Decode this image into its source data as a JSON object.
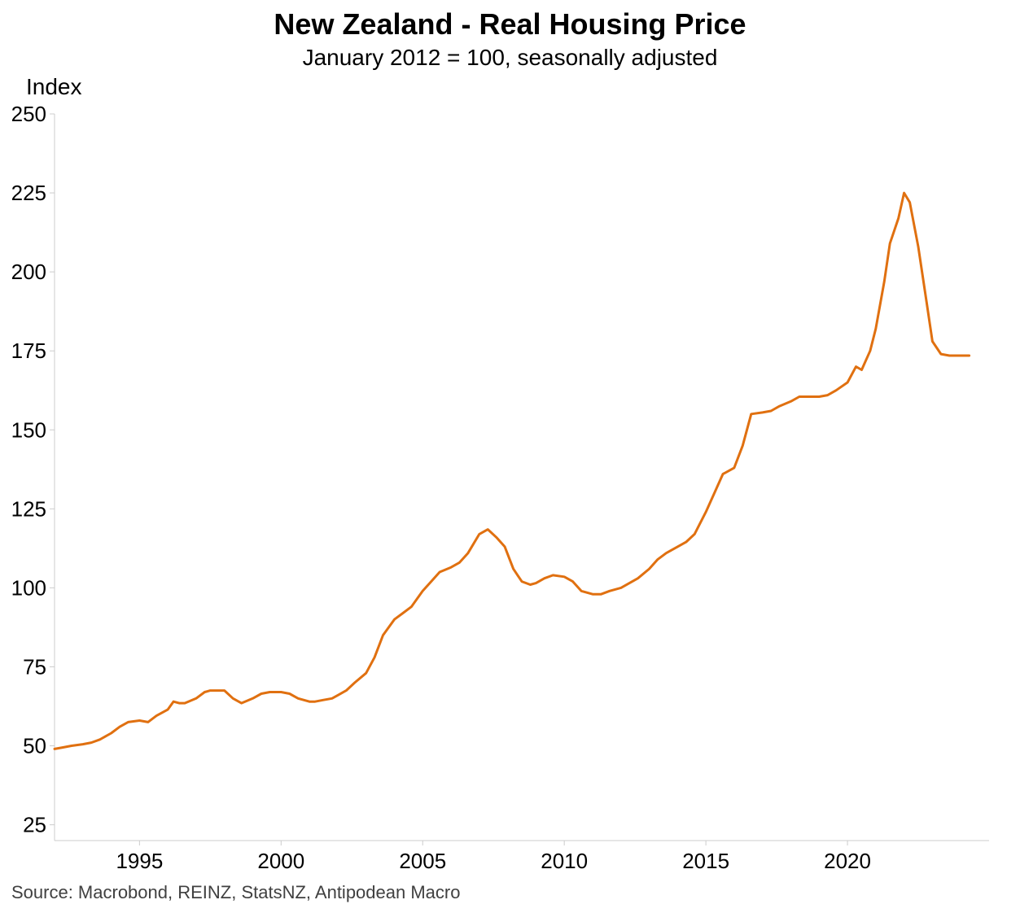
{
  "chart_data": {
    "type": "line",
    "title": "New Zealand - Real Housing Price",
    "subtitle": "January 2012 = 100, seasonally adjusted",
    "ylabel": "Index",
    "xlabel": "",
    "source": "Source: Macrobond, REINZ, StatsNZ, Antipodean Macro",
    "ylim": [
      20,
      250
    ],
    "xlim": [
      1992.0,
      2025.0
    ],
    "yticks": [
      "25",
      "50",
      "75",
      "100",
      "125",
      "150",
      "175",
      "200",
      "225",
      "250"
    ],
    "xticks": [
      "1995",
      "2000",
      "2005",
      "2010",
      "2015",
      "2020"
    ],
    "grid": false,
    "legend": "none",
    "line_color": "#E07010",
    "axis_color": "#cccccc",
    "series": [
      {
        "x": [
          1992.0,
          1992.3,
          1992.6,
          1993.0,
          1993.3,
          1993.6,
          1994.0,
          1994.3,
          1994.6,
          1995.0,
          1995.3,
          1995.6,
          1996.0,
          1996.2,
          1996.4,
          1996.6,
          1997.0,
          1997.3,
          1997.5,
          1997.8,
          1998.0,
          1998.3,
          1998.6,
          1999.0,
          1999.3,
          1999.6,
          2000.0,
          2000.3,
          2000.6,
          2001.0,
          2001.2,
          2001.5,
          2001.8,
          2002.0,
          2002.3,
          2002.6,
          2003.0,
          2003.3,
          2003.6,
          2004.0,
          2004.3,
          2004.6,
          2005.0,
          2005.3,
          2005.6,
          2006.0,
          2006.3,
          2006.6,
          2007.0,
          2007.3,
          2007.6,
          2007.9,
          2008.2,
          2008.5,
          2008.8,
          2009.0,
          2009.3,
          2009.6,
          2010.0,
          2010.3,
          2010.6,
          2011.0,
          2011.3,
          2011.6,
          2012.0,
          2012.3,
          2012.6,
          2013.0,
          2013.3,
          2013.6,
          2014.0,
          2014.3,
          2014.6,
          2015.0,
          2015.3,
          2015.6,
          2016.0,
          2016.3,
          2016.6,
          2017.0,
          2017.3,
          2017.6,
          2018.0,
          2018.3,
          2018.6,
          2019.0,
          2019.3,
          2019.6,
          2020.0,
          2020.3,
          2020.5,
          2020.8,
          2021.0,
          2021.3,
          2021.5,
          2021.8,
          2022.0,
          2022.2,
          2022.5,
          2022.8,
          2023.0,
          2023.3,
          2023.6,
          2024.0,
          2024.3
        ],
        "values": [
          49,
          49.5,
          50,
          50.5,
          51,
          52,
          54,
          56,
          57.5,
          58,
          57.5,
          59.5,
          61.5,
          64,
          63.5,
          63.5,
          65,
          67,
          67.5,
          67.5,
          67.5,
          65,
          63.5,
          65,
          66.5,
          67,
          67,
          66.5,
          65,
          64,
          64,
          64.5,
          65,
          66,
          67.5,
          70,
          73,
          78,
          85,
          90,
          92,
          94,
          99,
          102,
          105,
          106.5,
          108,
          111,
          117,
          118.5,
          116,
          113,
          106,
          102,
          101,
          101.5,
          103,
          104,
          103.5,
          102,
          99,
          98,
          98,
          99,
          100,
          101.5,
          103,
          106,
          109,
          111,
          113,
          114.5,
          117,
          124,
          130,
          136,
          138,
          145,
          155,
          155.5,
          156,
          157.5,
          159,
          160.5,
          160.5,
          160.5,
          161,
          162.5,
          165,
          170,
          169,
          175,
          182,
          197,
          209,
          217,
          225,
          222,
          208,
          190,
          178,
          174,
          173.5,
          173.5,
          173.5
        ]
      }
    ]
  }
}
